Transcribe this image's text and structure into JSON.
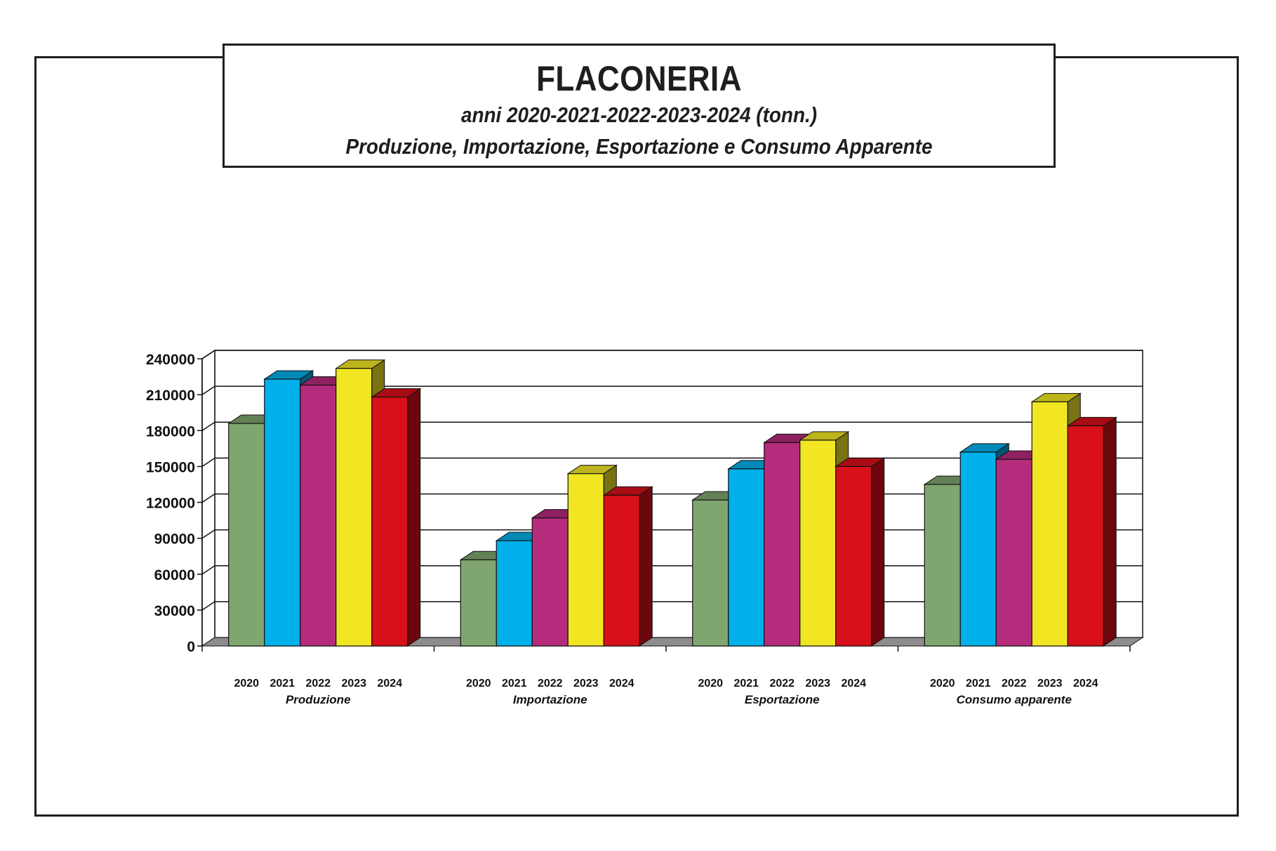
{
  "chart_data": {
    "type": "bar",
    "title": "FLACONERIA",
    "subtitle_line1": "anni 2020-2021-2022-2023-2024 (tonn.)",
    "subtitle_line2": "Produzione, Importazione, Esportazione e Consumo Apparente",
    "categories": [
      "Produzione",
      "Importazione",
      "Esportazione",
      "Consumo apparente"
    ],
    "series": [
      {
        "name": "2020",
        "color": "#7fa66e",
        "values": [
          186000,
          72000,
          122000,
          135000
        ]
      },
      {
        "name": "2021",
        "color": "#00b0eb",
        "values": [
          223000,
          88000,
          148000,
          162000
        ]
      },
      {
        "name": "2022",
        "color": "#b62c7c",
        "values": [
          218000,
          107000,
          170000,
          156000
        ]
      },
      {
        "name": "2023",
        "color": "#f2e623",
        "values": [
          232000,
          144000,
          172000,
          204000
        ]
      },
      {
        "name": "2024",
        "color": "#d8101a",
        "values": [
          208000,
          126000,
          150000,
          184000
        ]
      }
    ],
    "yticks": [
      "0",
      "30000",
      "60000",
      "90000",
      "120000",
      "150000",
      "180000",
      "210000",
      "240000"
    ],
    "ylim": [
      0,
      240000
    ],
    "xlabel": "",
    "ylabel": "",
    "grid": true,
    "legend": "none",
    "three_d": true
  }
}
